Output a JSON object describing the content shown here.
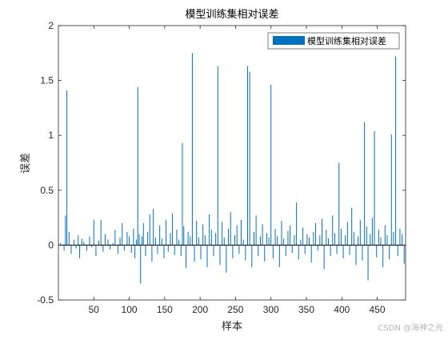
{
  "chart_data": {
    "type": "bar",
    "title": "模型训练集相对误差",
    "xlabel": "样本",
    "ylabel": "误差",
    "xlim": [
      0,
      490
    ],
    "ylim": [
      -0.5,
      2
    ],
    "xticks": [
      50,
      100,
      150,
      200,
      250,
      300,
      350,
      400,
      450
    ],
    "xtick_labels": [
      "50",
      "100",
      "150",
      "200",
      "250",
      "300",
      "350",
      "400",
      "450"
    ],
    "yticks": [
      -0.5,
      0,
      0.5,
      1,
      1.5,
      2
    ],
    "ytick_labels": [
      "-0.5",
      "0",
      "0.5",
      "1",
      "1.5",
      "2"
    ],
    "grid": false,
    "legend_position": "top-right",
    "series": [
      {
        "name": "模型训练集相对误差",
        "color": "#0072BD",
        "x": [
          3,
          8,
          10,
          12,
          15,
          18,
          22,
          25,
          28,
          30,
          33,
          36,
          40,
          44,
          47,
          50,
          53,
          57,
          60,
          63,
          66,
          70,
          73,
          77,
          80,
          84,
          87,
          90,
          93,
          97,
          100,
          103,
          106,
          108,
          110,
          112,
          114,
          116,
          118,
          120,
          123,
          126,
          129,
          132,
          134,
          137,
          140,
          143,
          146,
          149,
          152,
          155,
          158,
          161,
          164,
          167,
          170,
          173,
          175,
          177,
          180,
          183,
          186,
          189,
          192,
          195,
          198,
          201,
          204,
          207,
          210,
          213,
          216,
          219,
          222,
          225,
          228,
          231,
          234,
          237,
          240,
          243,
          246,
          249,
          252,
          255,
          258,
          261,
          264,
          267,
          270,
          273,
          276,
          279,
          282,
          285,
          288,
          291,
          294,
          297,
          300,
          303,
          306,
          309,
          312,
          315,
          318,
          321,
          324,
          327,
          330,
          333,
          336,
          339,
          342,
          345,
          348,
          351,
          354,
          357,
          360,
          363,
          366,
          369,
          372,
          375,
          378,
          381,
          384,
          387,
          390,
          393,
          396,
          399,
          402,
          405,
          408,
          411,
          414,
          417,
          420,
          423,
          426,
          429,
          432,
          435,
          437,
          440,
          443,
          446,
          449,
          452,
          455,
          458,
          461,
          464,
          467,
          470,
          473,
          476,
          479,
          482,
          485,
          488
        ],
        "values": [
          0.02,
          -0.05,
          0.27,
          1.41,
          0.12,
          -0.08,
          0.05,
          -0.03,
          0.09,
          -0.12,
          0.06,
          0.03,
          -0.05,
          0.08,
          -0.02,
          0.23,
          -0.1,
          0.04,
          0.23,
          -0.06,
          0.1,
          0.05,
          -0.04,
          0.02,
          0.14,
          -0.08,
          0.07,
          0.2,
          -0.05,
          0.12,
          0.08,
          -0.07,
          0.15,
          -0.12,
          0.05,
          1.44,
          0.1,
          -0.35,
          0.08,
          0.2,
          -0.1,
          0.12,
          0.28,
          -0.15,
          0.33,
          0.07,
          -0.08,
          0.18,
          0.06,
          -0.12,
          0.23,
          -0.06,
          0.11,
          0.29,
          -0.09,
          0.14,
          0.05,
          -0.1,
          0.93,
          0.17,
          -0.21,
          0.12,
          0.08,
          1.75,
          -0.15,
          0.22,
          0.07,
          -0.13,
          0.19,
          0.09,
          -0.2,
          0.28,
          0.14,
          -0.1,
          0.11,
          1.63,
          -0.18,
          0.21,
          0.07,
          -0.25,
          0.15,
          0.3,
          -0.12,
          0.09,
          0.18,
          -0.08,
          0.23,
          0.05,
          -0.14,
          1.63,
          1.58,
          -0.2,
          0.12,
          0.27,
          -0.1,
          0.08,
          0.19,
          -0.15,
          0.11,
          0.07,
          1.46,
          -0.12,
          0.15,
          0.08,
          -0.2,
          0.22,
          0.06,
          -0.1,
          0.13,
          0.18,
          -0.07,
          0.09,
          0.39,
          -0.13,
          0.05,
          0.16,
          -0.08,
          0.1,
          0.07,
          -0.16,
          0.12,
          0.2,
          -0.05,
          0.09,
          0.24,
          -0.22,
          0.14,
          0.06,
          -0.1,
          0.27,
          0.11,
          -0.08,
          0.75,
          0.15,
          -0.12,
          0.09,
          0.21,
          -0.09,
          0.34,
          0.12,
          -0.18,
          0.08,
          0.23,
          -0.14,
          1.12,
          0.17,
          -0.32,
          0.1,
          0.25,
          1.04,
          -0.11,
          0.14,
          0.07,
          -0.2,
          0.18,
          0.09,
          -0.13,
          1.01,
          0.12,
          1.72,
          -0.1,
          0.15,
          0.1,
          -0.17
        ]
      }
    ]
  },
  "watermark": "CSDN @海神之光"
}
